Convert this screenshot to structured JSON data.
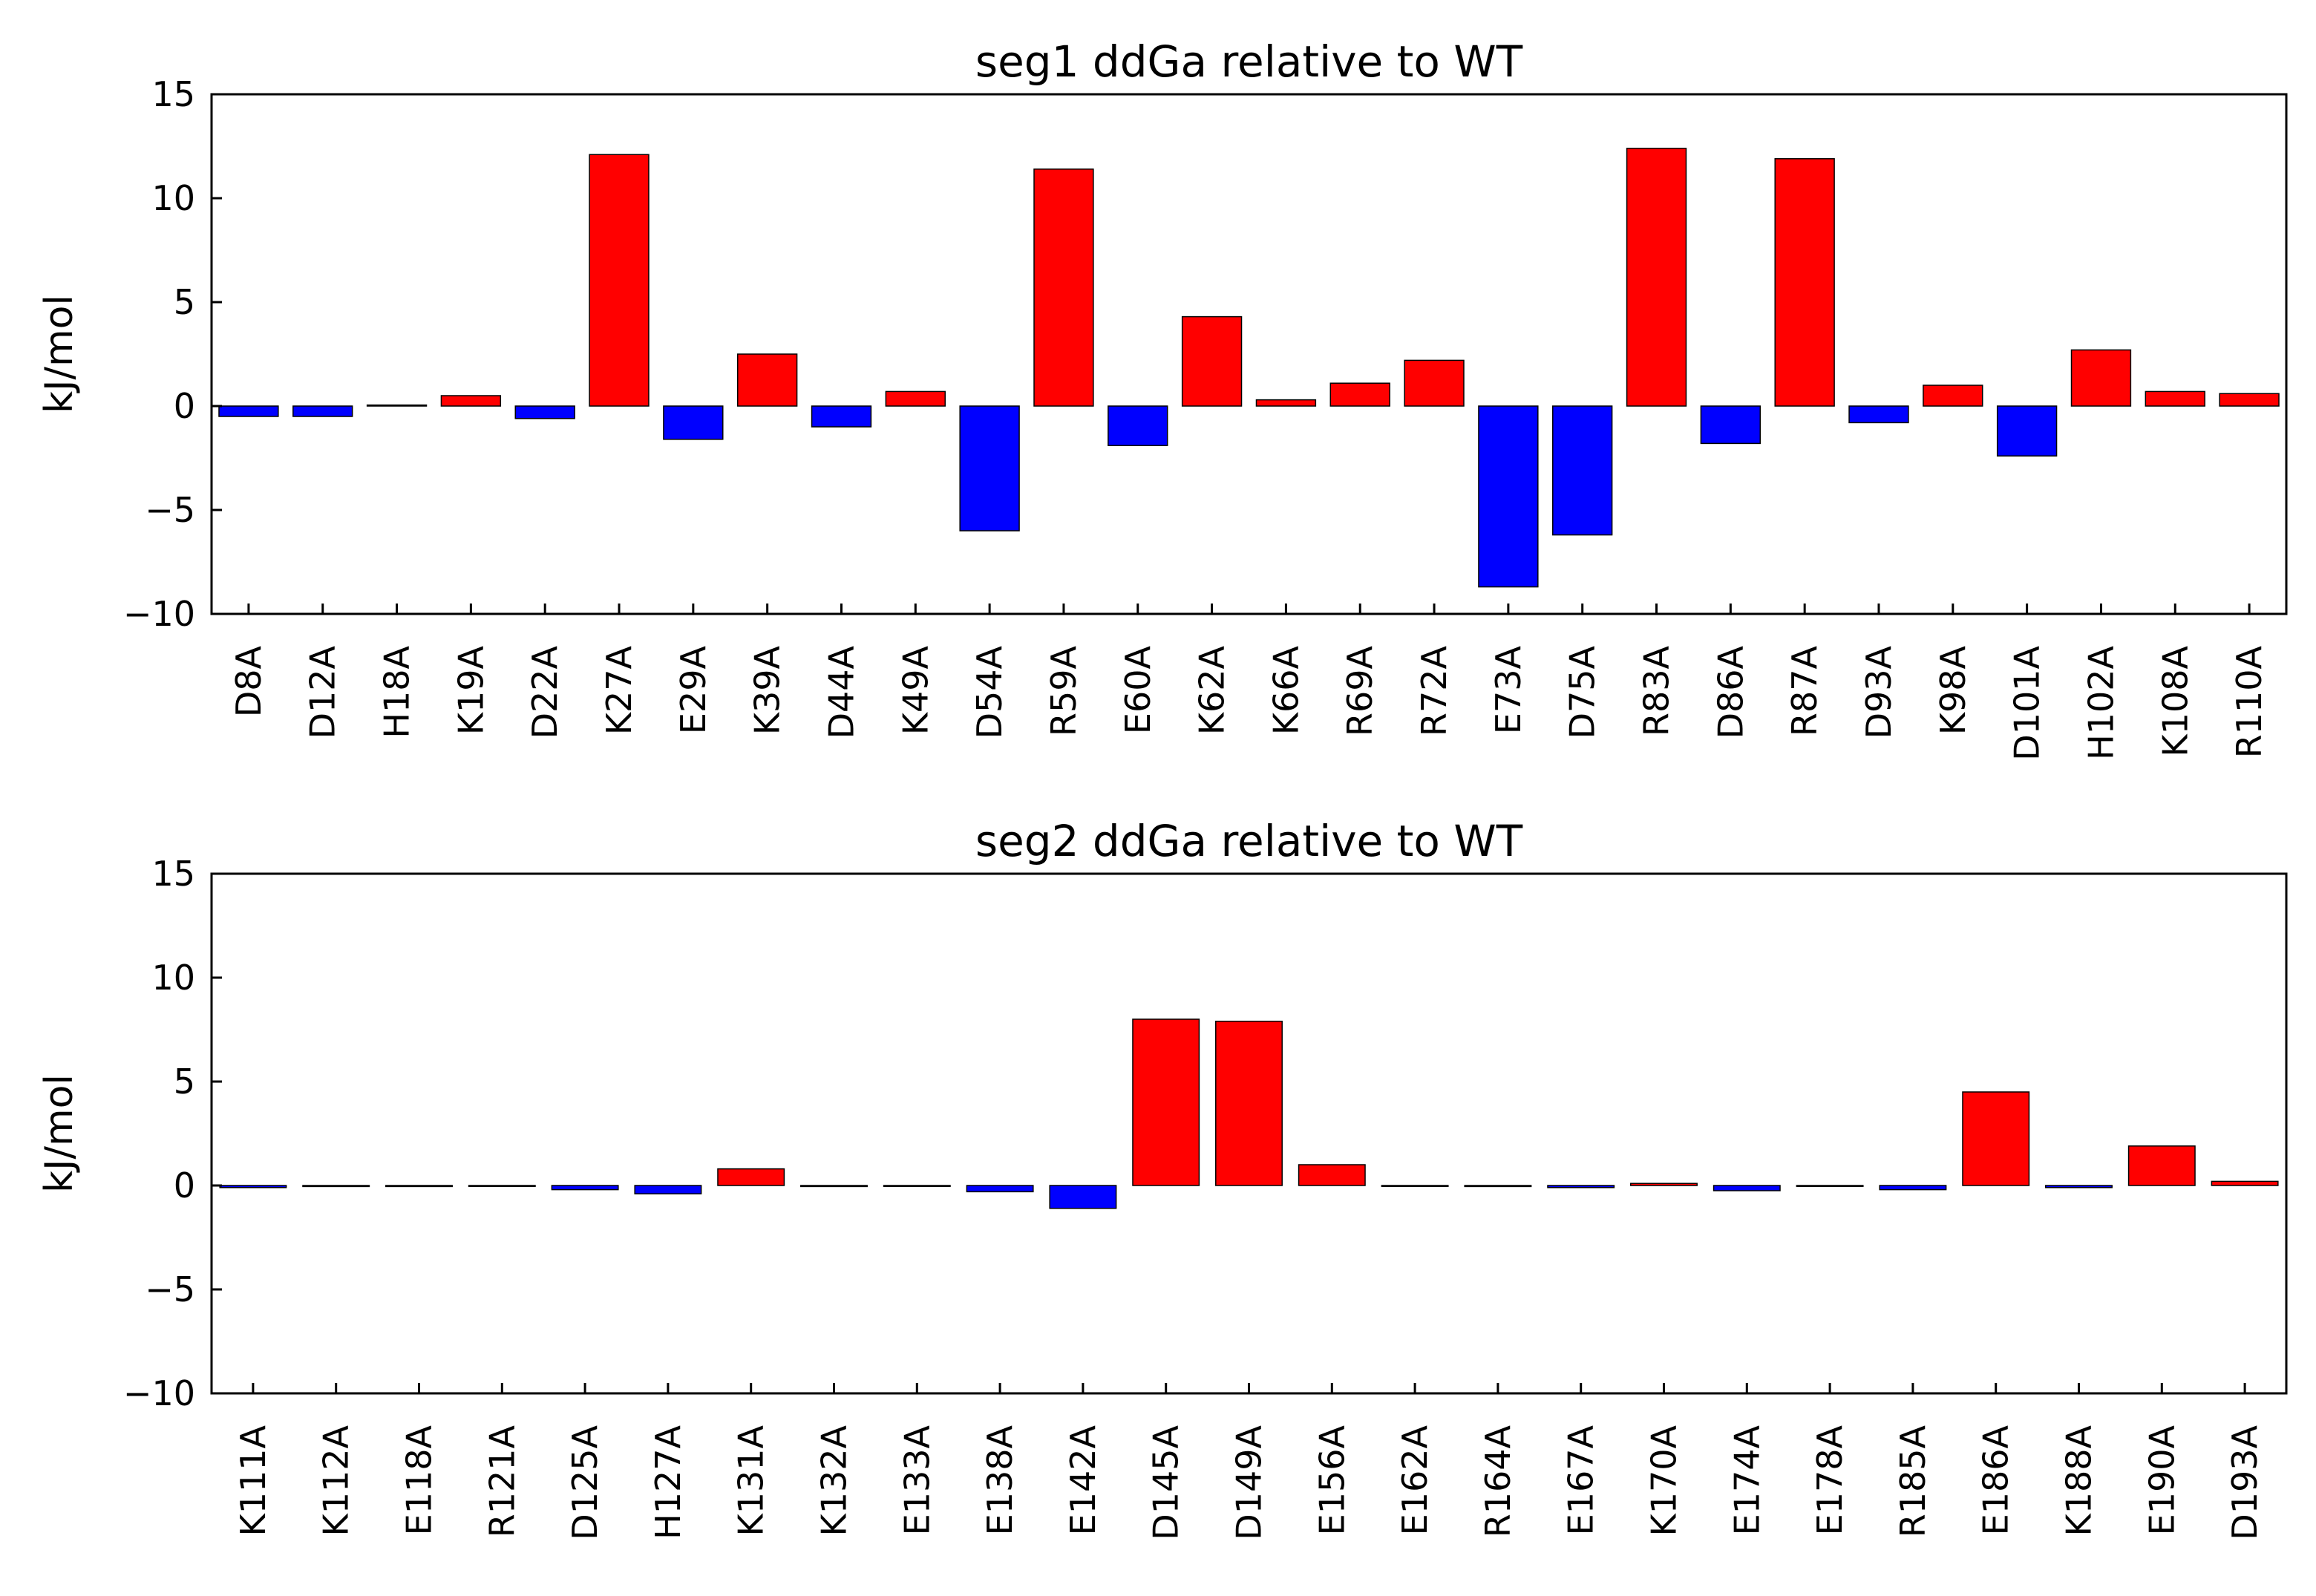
{
  "chart_data": [
    {
      "type": "bar",
      "title": "seg1 ddGa relative to WT",
      "xlabel": "",
      "ylabel": "kJ/mol",
      "ylim": [
        -10,
        15
      ],
      "yticks": [
        "−10",
        "−5",
        "0",
        "5",
        "10",
        "15"
      ],
      "grid": false,
      "legend": "none",
      "positive_color": "#ff0000",
      "negative_color": "#0000ff",
      "categories": [
        "D8A",
        "D12A",
        "H18A",
        "K19A",
        "D22A",
        "K27A",
        "E29A",
        "K39A",
        "D44A",
        "K49A",
        "D54A",
        "R59A",
        "E60A",
        "K62A",
        "K66A",
        "R69A",
        "R72A",
        "E73A",
        "D75A",
        "R83A",
        "D86A",
        "R87A",
        "D93A",
        "K98A",
        "D101A",
        "H102A",
        "K108A",
        "R110A"
      ],
      "values": [
        -0.5,
        -0.5,
        0.05,
        0.5,
        -0.6,
        12.1,
        -1.6,
        2.5,
        -1.0,
        0.7,
        -6.0,
        11.4,
        -1.9,
        4.3,
        0.3,
        1.1,
        2.2,
        -8.7,
        -6.2,
        12.4,
        -1.8,
        11.9,
        -0.8,
        1.0,
        -2.4,
        2.7,
        0.7,
        0.6
      ]
    },
    {
      "type": "bar",
      "title": "seg2 ddGa relative to WT",
      "xlabel": "",
      "ylabel": "kJ/mol",
      "ylim": [
        -10,
        15
      ],
      "yticks": [
        "−10",
        "−5",
        "0",
        "5",
        "10",
        "15"
      ],
      "grid": false,
      "legend": "none",
      "positive_color": "#ff0000",
      "negative_color": "#0000ff",
      "categories": [
        "K111A",
        "K112A",
        "E118A",
        "R121A",
        "D125A",
        "H127A",
        "K131A",
        "K132A",
        "E133A",
        "E138A",
        "E142A",
        "D145A",
        "D149A",
        "E156A",
        "E162A",
        "R164A",
        "E167A",
        "K170A",
        "E174A",
        "E178A",
        "R185A",
        "E186A",
        "K188A",
        "E190A",
        "D193A"
      ],
      "values": [
        -0.1,
        -0.05,
        -0.05,
        0.0,
        -0.2,
        -0.4,
        0.8,
        -0.05,
        0.0,
        -0.3,
        -1.1,
        8.0,
        7.9,
        1.0,
        0.0,
        -0.05,
        -0.1,
        0.1,
        -0.25,
        0.0,
        -0.2,
        4.5,
        -0.1,
        1.9,
        0.2
      ]
    }
  ]
}
